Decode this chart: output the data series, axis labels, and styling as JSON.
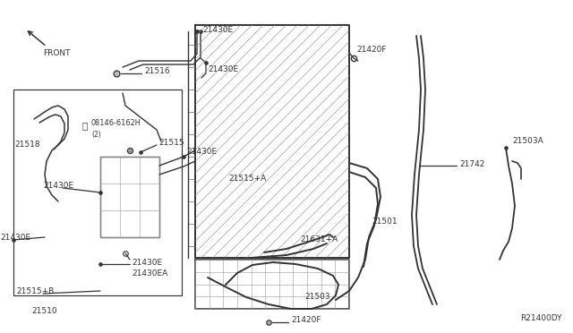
{
  "bg_color": "#ffffff",
  "lc": "#333333",
  "figsize": [
    6.4,
    3.72
  ],
  "dpi": 100,
  "ref_code": "R21400DY",
  "fs": 6.5,
  "parts": {
    "21430E": "21430E",
    "21516": "21516",
    "21420F": "21420F",
    "08146_6162H": "08146-6162H",
    "two": "(2)",
    "21515": "21515",
    "21518": "21518",
    "21515A": "21515+A",
    "21430E_left": "21430E",
    "21430E_bot": "21430E",
    "21430EA": "21430EA",
    "21515B": "21515+B",
    "21510": "21510",
    "21501": "21501",
    "21631A": "21631+A",
    "21503": "21503",
    "21420F_bot": "21420F",
    "21742": "21742",
    "21503A": "21503A"
  }
}
